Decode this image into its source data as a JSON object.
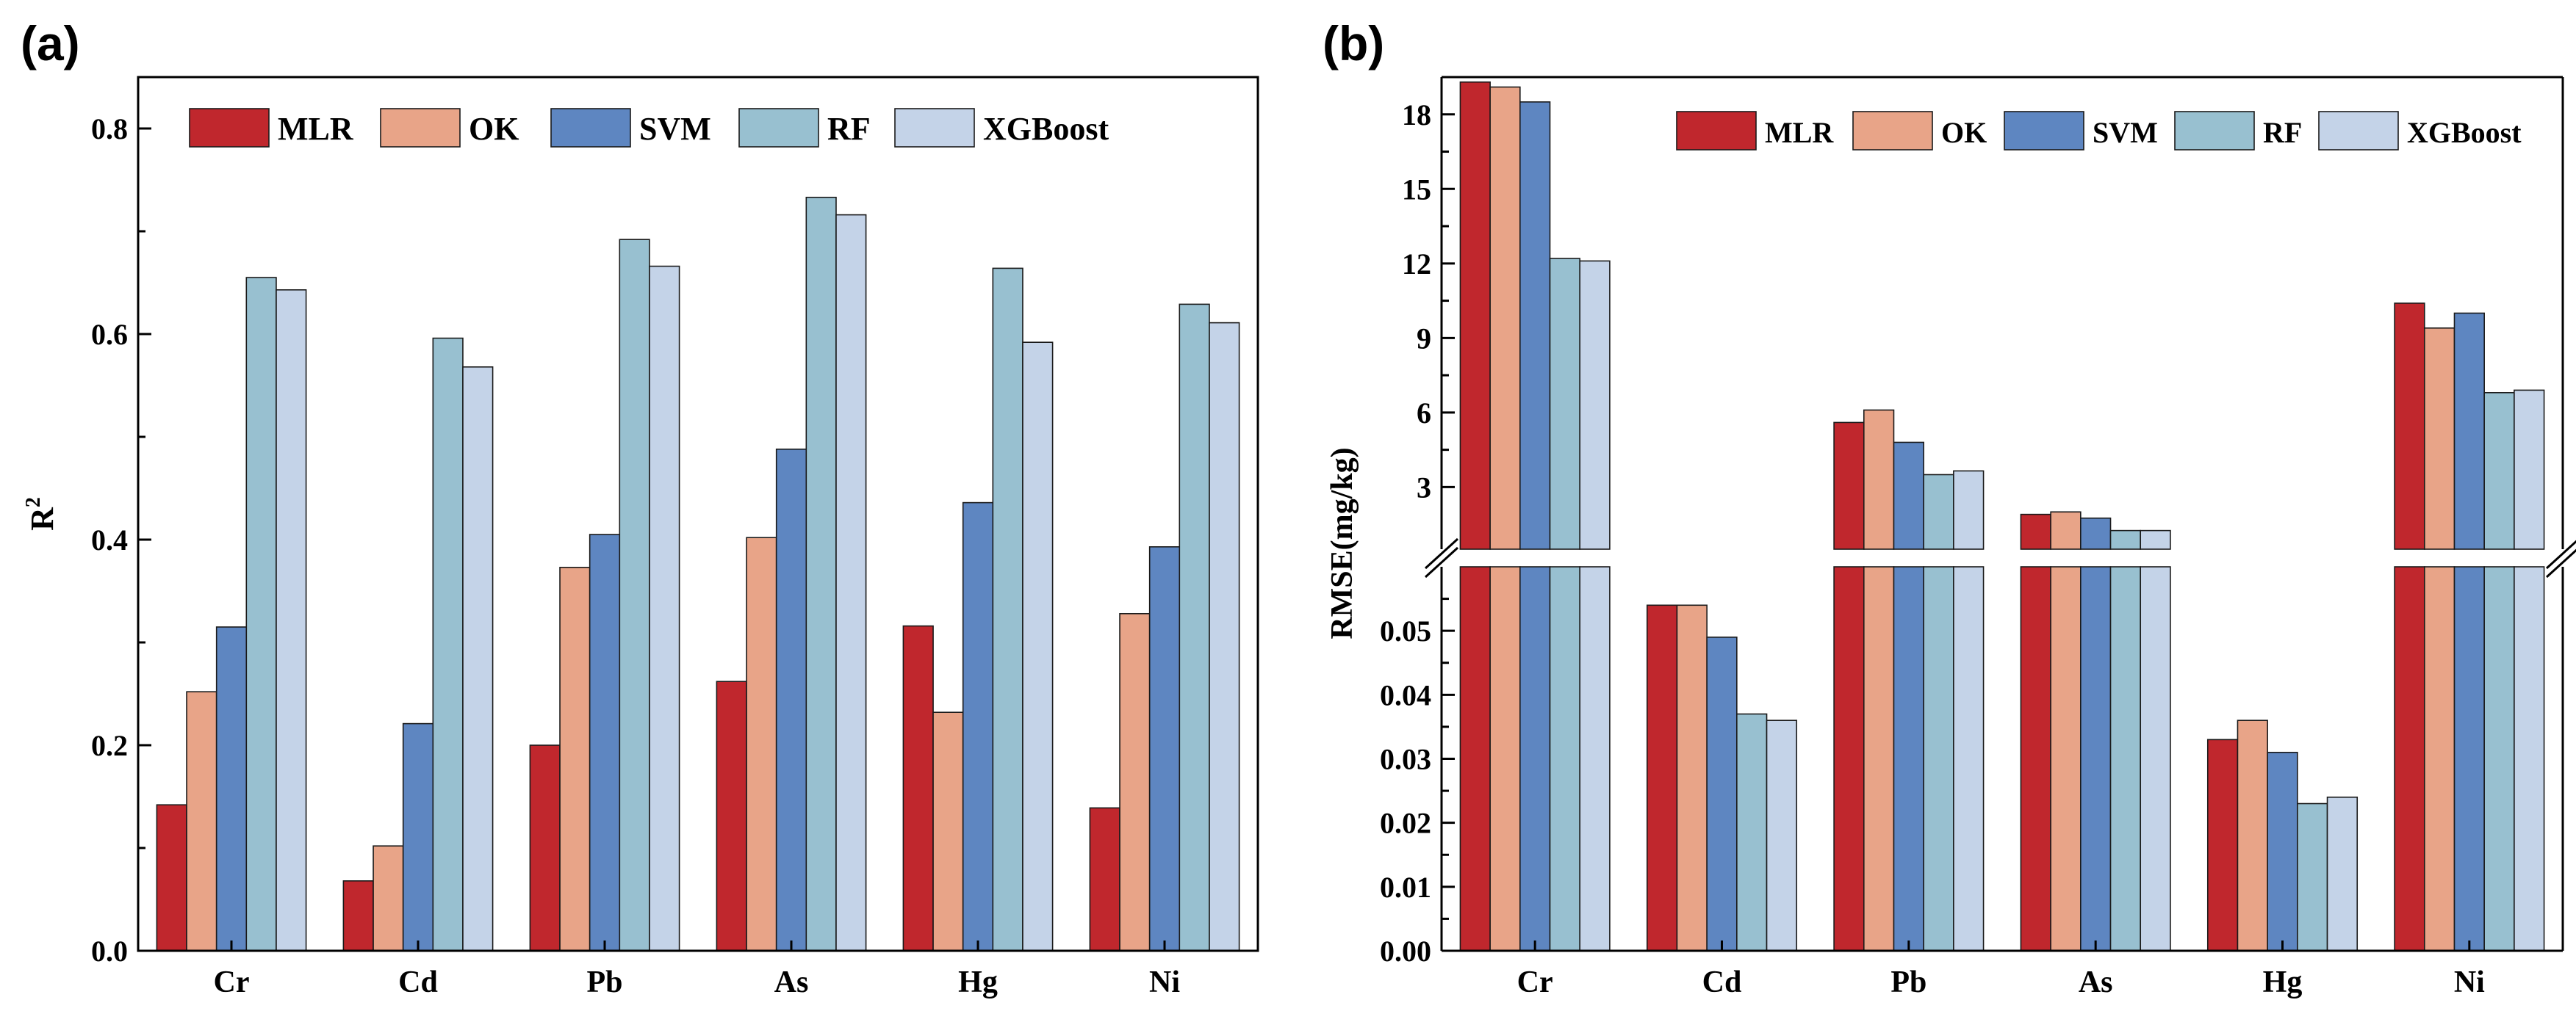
{
  "colors": {
    "MLR": "#c0272d",
    "OK": "#e8a488",
    "SVM": "#5e86c1",
    "RF": "#98c0d0",
    "XGBoost": "#c4d3e8",
    "stroke": "#1a1a1a"
  },
  "chart_data": [
    {
      "panel_label": "(a)",
      "type": "bar",
      "title": "",
      "xlabel": "",
      "ylabel": "R",
      "ylabel_superscript": "2",
      "categories": [
        "Cr",
        "Cd",
        "Pb",
        "As",
        "Hg",
        "Ni"
      ],
      "ylim": [
        0,
        0.85
      ],
      "yticks": [
        0.0,
        0.2,
        0.4,
        0.6,
        0.8
      ],
      "ytick_labels": [
        "0.0",
        "0.2",
        "0.4",
        "0.6",
        "0.8"
      ],
      "legend_position": "top",
      "series": [
        {
          "name": "MLR",
          "values": [
            0.142,
            0.068,
            0.2,
            0.262,
            0.316,
            0.139
          ]
        },
        {
          "name": "OK",
          "values": [
            0.252,
            0.102,
            0.373,
            0.402,
            0.232,
            0.328
          ]
        },
        {
          "name": "SVM",
          "values": [
            0.315,
            0.221,
            0.405,
            0.488,
            0.436,
            0.393
          ]
        },
        {
          "name": "RF",
          "values": [
            0.655,
            0.596,
            0.692,
            0.733,
            0.664,
            0.629
          ]
        },
        {
          "name": "XGBoost",
          "values": [
            0.643,
            0.568,
            0.666,
            0.716,
            0.592,
            0.611
          ]
        }
      ]
    },
    {
      "panel_label": "(b)",
      "type": "bar",
      "title": "",
      "xlabel": "",
      "ylabel": "RMSE(mg/kg)",
      "categories": [
        "Cr",
        "Cd",
        "Pb",
        "As",
        "Hg",
        "Ni"
      ],
      "axis_break": true,
      "lower_ylim": [
        0,
        0.06
      ],
      "lower_yticks": [
        0.0,
        0.01,
        0.02,
        0.03,
        0.04,
        0.05
      ],
      "lower_ytick_labels": [
        "0.00",
        "0.01",
        "0.02",
        "0.03",
        "0.04",
        "0.05"
      ],
      "upper_ylim": [
        0.5,
        19.5
      ],
      "upper_yticks": [
        3,
        6,
        9,
        12,
        15,
        18
      ],
      "upper_ytick_labels": [
        "3",
        "6",
        "9",
        "12",
        "15",
        "18"
      ],
      "legend_position": "top-right",
      "series": [
        {
          "name": "MLR",
          "values": [
            19.3,
            0.054,
            5.6,
            1.9,
            0.033,
            10.4
          ]
        },
        {
          "name": "OK",
          "values": [
            19.1,
            0.054,
            6.1,
            2.0,
            0.036,
            9.4
          ]
        },
        {
          "name": "SVM",
          "values": [
            18.5,
            0.049,
            4.8,
            1.75,
            0.031,
            10.0
          ]
        },
        {
          "name": "RF",
          "values": [
            12.2,
            0.037,
            3.5,
            1.25,
            0.023,
            6.8
          ]
        },
        {
          "name": "XGBoost",
          "values": [
            12.1,
            0.036,
            3.65,
            1.25,
            0.024,
            6.9
          ]
        }
      ]
    }
  ]
}
